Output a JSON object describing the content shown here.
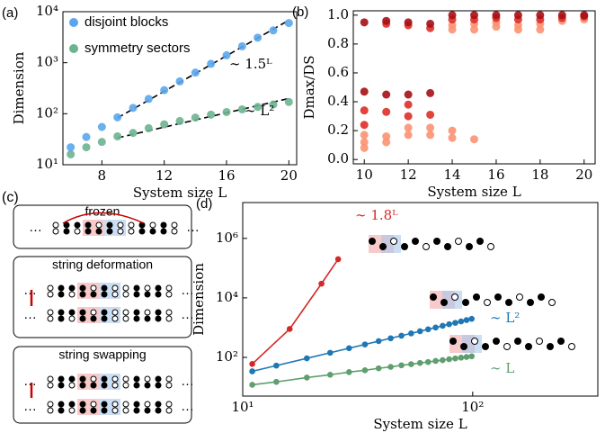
{
  "chart_data": [
    {
      "type": "scatter",
      "panel_label": "(a)",
      "xlabel": "System size L",
      "ylabel": "Dimension",
      "xlim": [
        5.5,
        20.5
      ],
      "xticks": [
        8,
        12,
        16,
        20
      ],
      "ylim": [
        10,
        10000
      ],
      "ylog": true,
      "yticks": [
        {
          "value": 10,
          "label": "10¹"
        },
        {
          "value": 100,
          "label": "10²"
        },
        {
          "value": 1000,
          "label": "10³"
        },
        {
          "value": 10000,
          "label": "10⁴"
        }
      ],
      "legend": "top-left",
      "fit": true,
      "x": [
        6,
        7,
        8,
        9,
        10,
        11,
        12,
        13,
        14,
        15,
        16,
        17,
        18,
        19,
        20
      ],
      "series": [
        {
          "name": "symmetry sectors",
          "color": "#6db38f",
          "values": [
            16,
            22,
            28,
            36,
            42,
            52,
            62,
            72,
            84,
            96,
            108,
            122,
            136,
            152,
            170
          ]
        },
        {
          "name": "disjoint blocks",
          "color": "#5aa6ec",
          "values": [
            22,
            35,
            55,
            85,
            130,
            195,
            290,
            430,
            640,
            950,
            1400,
            2100,
            3100,
            4300,
            6000
          ]
        }
      ],
      "annotations": [
        {
          "text": "∼ 1.5ᴸ",
          "color": "#000000"
        },
        {
          "text": "∼ L²",
          "color": "#000000"
        }
      ]
    },
    {
      "type": "scatter",
      "panel_label": "(b)",
      "xlabel": "System size L",
      "ylabel": "Dmax/DS",
      "xlim": [
        9.5,
        20.5
      ],
      "xticks": [
        10,
        12,
        14,
        16,
        18,
        20
      ],
      "ylim": [
        -0.03,
        1.03
      ],
      "yticks": [
        {
          "value": 0,
          "label": "0.0"
        },
        {
          "value": 0.2,
          "label": "0.2"
        },
        {
          "value": 0.4,
          "label": "0.4"
        },
        {
          "value": 0.6,
          "label": "0.6"
        },
        {
          "value": 0.8,
          "label": "0.8"
        },
        {
          "value": 1,
          "label": "1.0"
        }
      ],
      "series": [
        {
          "color": "#fc9272",
          "x": [
            14,
            15,
            16,
            17,
            18,
            14,
            15,
            16,
            17,
            18,
            19,
            20,
            10,
            11,
            12,
            13,
            14,
            15,
            10,
            11,
            12,
            13,
            14,
            10
          ],
          "values": [
            0.93,
            0.94,
            0.95,
            0.93,
            0.94,
            0.9,
            0.9,
            0.92,
            0.9,
            0.9,
            0.96,
            0.97,
            0.17,
            0.16,
            0.22,
            0.22,
            0.2,
            0.14,
            0.12,
            0.12,
            0.17,
            0.17,
            0.15,
            0.08
          ]
        },
        {
          "color": "#de2d26",
          "x": [
            11,
            12,
            13,
            14,
            15,
            16,
            17,
            18,
            19,
            20,
            10,
            11,
            12,
            13,
            10,
            12
          ],
          "values": [
            0.94,
            0.93,
            0.91,
            0.97,
            0.97,
            0.98,
            0.97,
            0.97,
            0.98,
            0.99,
            0.34,
            0.33,
            0.38,
            0.31,
            0.24,
            0.3
          ]
        },
        {
          "color": "#a50f15",
          "x": [
            10,
            11,
            12,
            13,
            14,
            15,
            16,
            17,
            18,
            19,
            20,
            10,
            11,
            12,
            13
          ],
          "values": [
            0.95,
            0.96,
            0.95,
            0.94,
            1,
            1,
            1,
            1,
            1,
            1,
            1,
            0.47,
            0.45,
            0.45,
            0.46
          ]
        }
      ]
    },
    {
      "type": "scatter",
      "panel_label": "(d)",
      "xlabel": "System size L",
      "ylabel": "Dimension",
      "xlim": [
        10,
        350
      ],
      "xlog": true,
      "xticks": [
        {
          "value": 10,
          "label": "10¹"
        },
        {
          "value": 100,
          "label": "10²"
        }
      ],
      "ylim": [
        5,
        16000000
      ],
      "ylog": true,
      "yticks": [
        {
          "value": 100,
          "label": "10²"
        },
        {
          "value": 10000,
          "label": "10⁴"
        },
        {
          "value": 1000000,
          "label": "10⁶"
        }
      ],
      "line": true,
      "series": [
        {
          "color": "#d62728",
          "x": [
            11,
            16,
            22,
            26
          ],
          "values": [
            60,
            900,
            30000,
            200000
          ]
        },
        {
          "color": "#1f77b4",
          "x": [
            11,
            14,
            19,
            24,
            29,
            34,
            39,
            44,
            49,
            54,
            59,
            64,
            69,
            74,
            79,
            84,
            89,
            94,
            99
          ],
          "values": [
            34,
            53,
            93,
            143,
            203,
            272,
            352,
            439,
            536,
            640,
            756,
            878,
            1010,
            1150,
            1300,
            1450,
            1620,
            1790,
            1970
          ]
        },
        {
          "color": "#5f9e6e",
          "x": [
            11,
            14,
            19,
            24,
            29,
            34,
            39,
            44,
            49,
            54,
            59,
            64,
            69,
            74,
            79,
            84,
            89,
            94,
            99
          ],
          "values": [
            12,
            15,
            21,
            26,
            32,
            37,
            43,
            48,
            54,
            59,
            65,
            70,
            76,
            81,
            87,
            92,
            98,
            103,
            109
          ]
        }
      ],
      "annotations": [
        {
          "text": "∼ 1.8ᴸ",
          "color": "#d62728"
        },
        {
          "text": "∼ L²",
          "color": "#1f77b4"
        },
        {
          "text": "∼ L",
          "color": "#5f9e6e"
        }
      ]
    }
  ],
  "diagram": {
    "panel_label": "(c)",
    "boxes": [
      {
        "label": "frozen"
      },
      {
        "label": "string deformation"
      },
      {
        "label": "string swapping"
      }
    ]
  }
}
